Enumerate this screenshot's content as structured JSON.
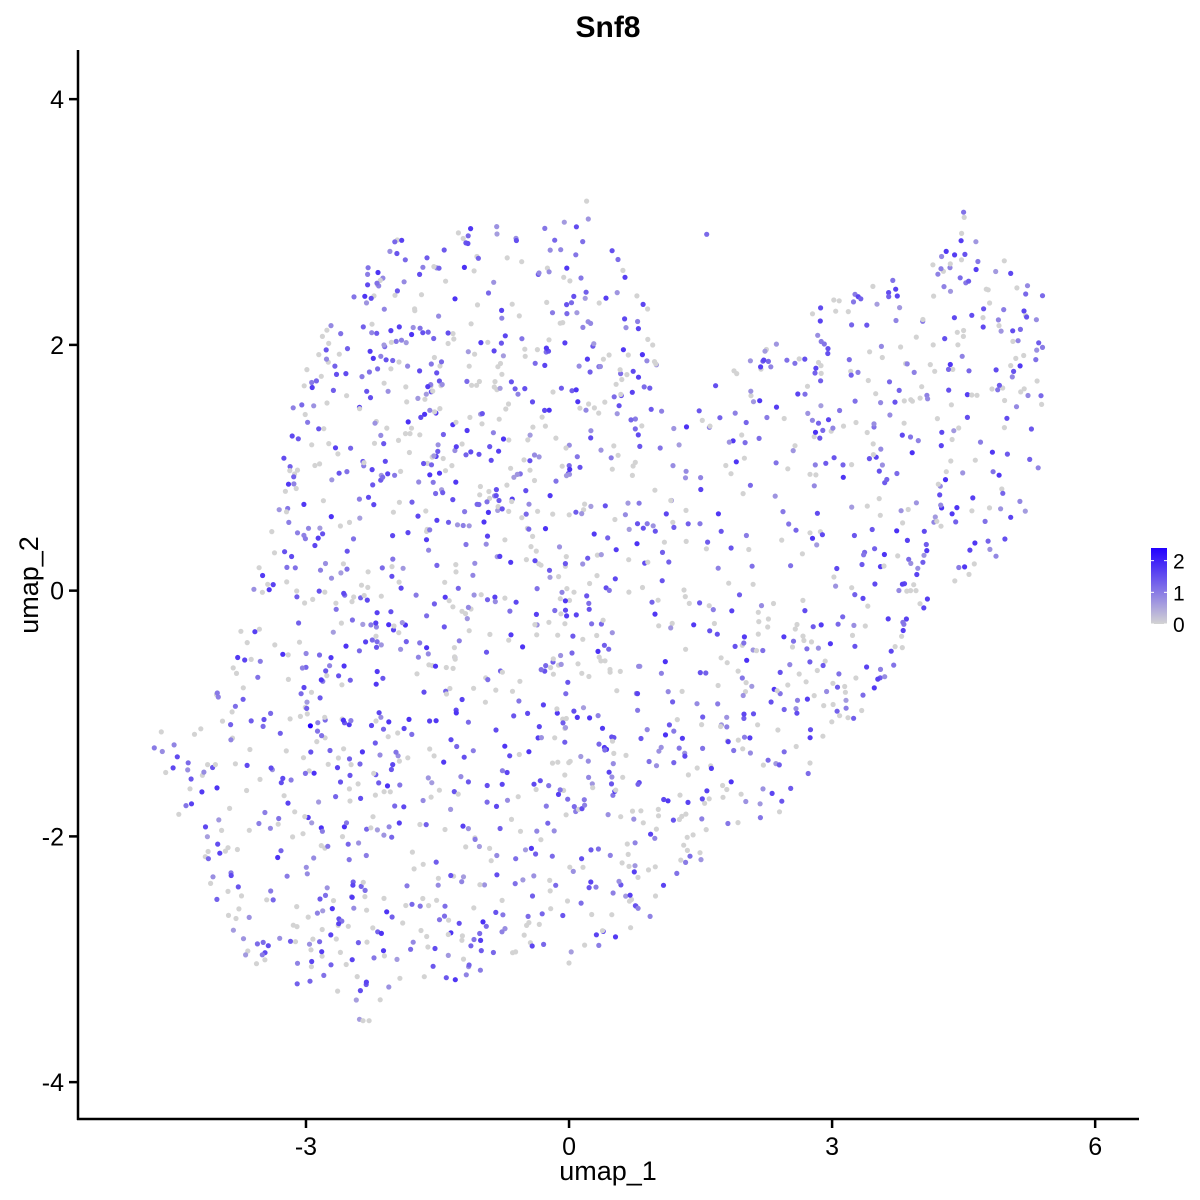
{
  "chart_data": {
    "type": "scatter",
    "title": "Snf8",
    "xlabel": "umap_1",
    "ylabel": "umap_2",
    "xlim": [
      -5.6,
      6.5
    ],
    "ylim": [
      -4.3,
      4.4
    ],
    "x_ticks": [
      "-3",
      "0",
      "3",
      "6"
    ],
    "x_tick_values": [
      -3,
      0,
      3,
      6
    ],
    "y_ticks": [
      "-4",
      "-2",
      "0",
      "2",
      "4"
    ],
    "y_tick_values": [
      -4,
      -2,
      0,
      2,
      4
    ],
    "grid": false,
    "legend": {
      "placement": "right",
      "type": "colorbar",
      "labels": [
        "2",
        "1",
        "0"
      ],
      "label_values": [
        2,
        1,
        0
      ],
      "range": [
        0,
        2.4
      ],
      "low_color": "#d3d3d3",
      "high_color": "#2200ff"
    },
    "colors": {
      "low": "#d3d3d3",
      "high": "#2200ff"
    },
    "point_count_approx": 1900,
    "series": [
      {
        "points": [
          {
            "x": -2.95,
            "y": -1.1,
            "value": 2.4
          },
          {
            "x": -4.73,
            "y": -1.28,
            "value": 1.0
          },
          {
            "x": -4.65,
            "y": -1.15,
            "value": 0.0
          },
          {
            "x": -4.6,
            "y": -1.48,
            "value": 0.0
          },
          {
            "x": -4.45,
            "y": -1.82,
            "value": 0.0
          },
          {
            "x": -2.28,
            "y": -3.5,
            "value": 0.0
          },
          {
            "x": -2.35,
            "y": -3.5,
            "value": 0.0
          },
          {
            "x": 0.2,
            "y": 3.17,
            "value": 0.0
          },
          {
            "x": 4.5,
            "y": 3.08,
            "value": 1.1
          },
          {
            "x": 5.4,
            "y": 2.4,
            "value": 1.2
          },
          {
            "x": 5.4,
            "y": 1.98,
            "value": 1.0
          },
          {
            "x": 5.35,
            "y": 1.0,
            "value": 0.9
          },
          {
            "x": 0.0,
            "y": -3.03,
            "value": 0.0
          },
          {
            "x": -0.6,
            "y": 2.85,
            "value": 1.5
          },
          {
            "x": 1.57,
            "y": 2.9,
            "value": 1.2
          },
          {
            "x": 1.08,
            "y": -1.7,
            "value": 1.6
          },
          {
            "x": -1.4,
            "y": -3.15,
            "value": 1.4
          },
          {
            "x": -3.1,
            "y": -3.2,
            "value": 1.3
          },
          {
            "x": 2.4,
            "y": -1.8,
            "value": 0.0
          },
          {
            "x": 3.6,
            "y": -0.7,
            "value": 0.8
          }
        ]
      }
    ]
  }
}
